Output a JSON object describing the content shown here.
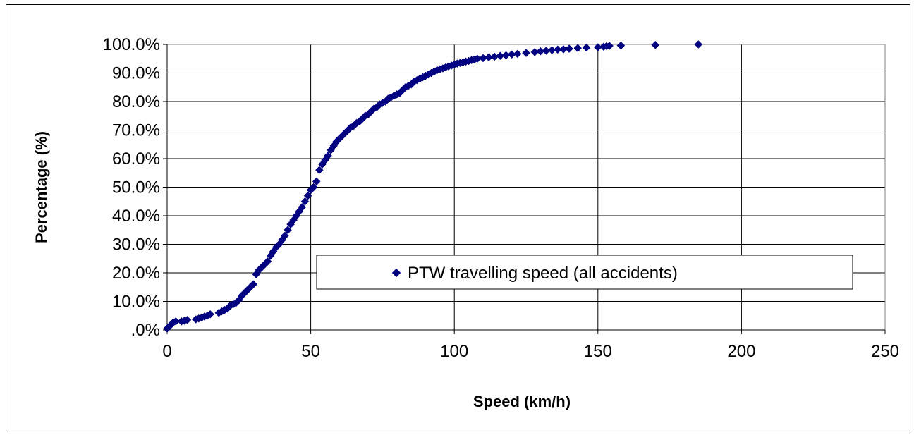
{
  "chart_data": {
    "type": "scatter",
    "title": "",
    "xlabel": "Speed (km/h)",
    "ylabel": "Percentage (%)",
    "xlim": [
      0,
      250
    ],
    "ylim": [
      0,
      100
    ],
    "x_ticks": [
      0,
      50,
      100,
      150,
      200,
      250
    ],
    "x_tick_labels": [
      "0",
      "50",
      "100",
      "150",
      "200",
      "250"
    ],
    "y_ticks": [
      0,
      10,
      20,
      30,
      40,
      50,
      60,
      70,
      80,
      90,
      100
    ],
    "y_tick_labels": [
      ".0%",
      "10.0%",
      "20.0%",
      "30.0%",
      "40.0%",
      "50.0%",
      "60.0%",
      "70.0%",
      "80.0%",
      "90.0%",
      "100.0%"
    ],
    "grid": "horizontal",
    "legend_position": "center-right",
    "marker_color": "#000080",
    "series": [
      {
        "name": "PTW travelling speed (all accidents)",
        "points": [
          [
            0,
            0.5
          ],
          [
            1,
            1.5
          ],
          [
            2,
            2.5
          ],
          [
            3,
            3
          ],
          [
            5,
            3
          ],
          [
            6,
            3.2
          ],
          [
            7,
            3.5
          ],
          [
            10,
            3.7
          ],
          [
            11,
            4
          ],
          [
            12,
            4.3
          ],
          [
            13,
            4.7
          ],
          [
            14,
            5
          ],
          [
            15,
            5.5
          ],
          [
            18,
            6
          ],
          [
            19,
            6.5
          ],
          [
            20,
            7
          ],
          [
            21,
            7.5
          ],
          [
            22,
            8.5
          ],
          [
            23,
            9
          ],
          [
            24,
            9.5
          ],
          [
            25,
            10.5
          ],
          [
            26,
            12
          ],
          [
            27,
            13
          ],
          [
            28,
            14
          ],
          [
            29,
            15
          ],
          [
            30,
            16
          ],
          [
            31,
            19.5
          ],
          [
            32,
            21
          ],
          [
            33,
            22
          ],
          [
            34,
            23
          ],
          [
            35,
            24
          ],
          [
            36,
            26
          ],
          [
            37,
            27.5
          ],
          [
            38,
            29
          ],
          [
            39,
            30
          ],
          [
            40,
            31.5
          ],
          [
            41,
            33
          ],
          [
            42,
            35
          ],
          [
            43,
            37
          ],
          [
            44,
            38.5
          ],
          [
            45,
            40
          ],
          [
            46,
            41.5
          ],
          [
            47,
            43
          ],
          [
            48,
            45
          ],
          [
            49,
            47
          ],
          [
            50,
            49
          ],
          [
            51,
            50
          ],
          [
            52,
            52
          ],
          [
            53,
            56
          ],
          [
            54,
            58
          ],
          [
            55,
            59.5
          ],
          [
            56,
            61
          ],
          [
            57,
            63
          ],
          [
            58,
            64.5
          ],
          [
            59,
            66
          ],
          [
            60,
            67
          ],
          [
            61,
            68
          ],
          [
            62,
            69
          ],
          [
            63,
            70
          ],
          [
            64,
            71
          ],
          [
            65,
            71.5
          ],
          [
            66,
            72.5
          ],
          [
            67,
            73
          ],
          [
            68,
            74
          ],
          [
            69,
            75
          ],
          [
            70,
            75.5
          ],
          [
            71,
            76.5
          ],
          [
            72,
            77.5
          ],
          [
            73,
            78
          ],
          [
            74,
            79
          ],
          [
            75,
            79.5
          ],
          [
            76,
            80
          ],
          [
            77,
            81
          ],
          [
            78,
            81.5
          ],
          [
            79,
            82
          ],
          [
            80,
            82.5
          ],
          [
            81,
            83
          ],
          [
            82,
            84
          ],
          [
            83,
            85
          ],
          [
            84,
            85.5
          ],
          [
            85,
            86
          ],
          [
            86,
            87
          ],
          [
            87,
            87.5
          ],
          [
            88,
            88
          ],
          [
            89,
            88.5
          ],
          [
            90,
            89
          ],
          [
            91,
            89.5
          ],
          [
            92,
            90
          ],
          [
            93,
            90.5
          ],
          [
            94,
            91
          ],
          [
            95,
            91.3
          ],
          [
            96,
            91.6
          ],
          [
            97,
            92
          ],
          [
            98,
            92.3
          ],
          [
            99,
            92.6
          ],
          [
            100,
            93
          ],
          [
            101,
            93.3
          ],
          [
            102,
            93.5
          ],
          [
            103,
            93.7
          ],
          [
            104,
            94
          ],
          [
            105,
            94.2
          ],
          [
            106,
            94.5
          ],
          [
            107,
            94.7
          ],
          [
            108,
            95
          ],
          [
            110,
            95.2
          ],
          [
            112,
            95.5
          ],
          [
            114,
            95.7
          ],
          [
            116,
            96
          ],
          [
            118,
            96.2
          ],
          [
            120,
            96.5
          ],
          [
            122,
            96.7
          ],
          [
            125,
            97
          ],
          [
            128,
            97.3
          ],
          [
            130,
            97.6
          ],
          [
            132,
            97.8
          ],
          [
            134,
            98
          ],
          [
            136,
            98.2
          ],
          [
            138,
            98.3
          ],
          [
            140,
            98.5
          ],
          [
            143,
            98.7
          ],
          [
            146,
            98.9
          ],
          [
            150,
            99
          ],
          [
            152,
            99.2
          ],
          [
            153,
            99.4
          ],
          [
            154,
            99.5
          ],
          [
            158,
            99.6
          ],
          [
            170,
            99.8
          ],
          [
            185,
            100
          ]
        ]
      }
    ]
  }
}
